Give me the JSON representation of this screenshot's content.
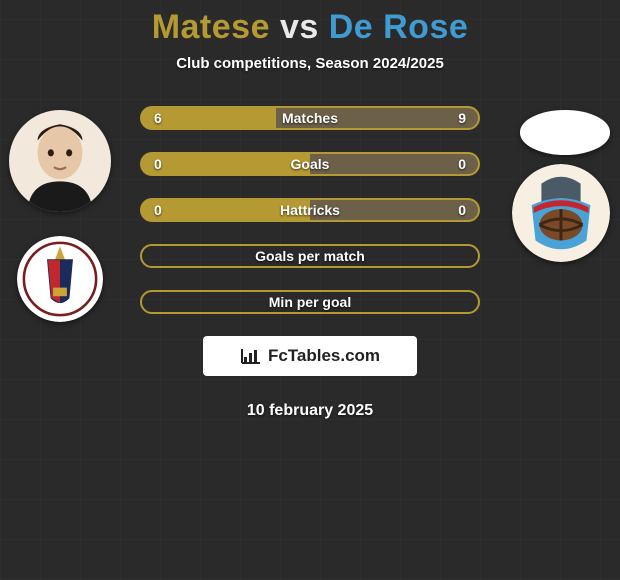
{
  "title": {
    "left_name": "Matese",
    "vs": "vs",
    "right_name": "De Rose",
    "left_color": "#b59a33",
    "vs_color": "#e9e9e9",
    "right_color": "#3f9bd1"
  },
  "subtitle": "Club competitions, Season 2024/2025",
  "date": "10 february 2025",
  "colors": {
    "left_fill": "#b59a33",
    "right_fill": "#6d6048",
    "border": "#b59a33",
    "bg": "#2a2a2a"
  },
  "bars": [
    {
      "label": "Matches",
      "left": "6",
      "right": "9",
      "leftPct": 40,
      "rightPct": 60,
      "showValues": true,
      "style": "split"
    },
    {
      "label": "Goals",
      "left": "0",
      "right": "0",
      "leftPct": 50,
      "rightPct": 50,
      "showValues": true,
      "style": "split"
    },
    {
      "label": "Hattricks",
      "left": "0",
      "right": "0",
      "leftPct": 50,
      "rightPct": 50,
      "showValues": true,
      "style": "split"
    },
    {
      "label": "Goals per match",
      "left": "",
      "right": "",
      "leftPct": 0,
      "rightPct": 0,
      "showValues": false,
      "style": "outline"
    },
    {
      "label": "Min per goal",
      "left": "",
      "right": "",
      "leftPct": 0,
      "rightPct": 0,
      "showValues": false,
      "style": "outline"
    }
  ],
  "branding": "FcTables.com"
}
